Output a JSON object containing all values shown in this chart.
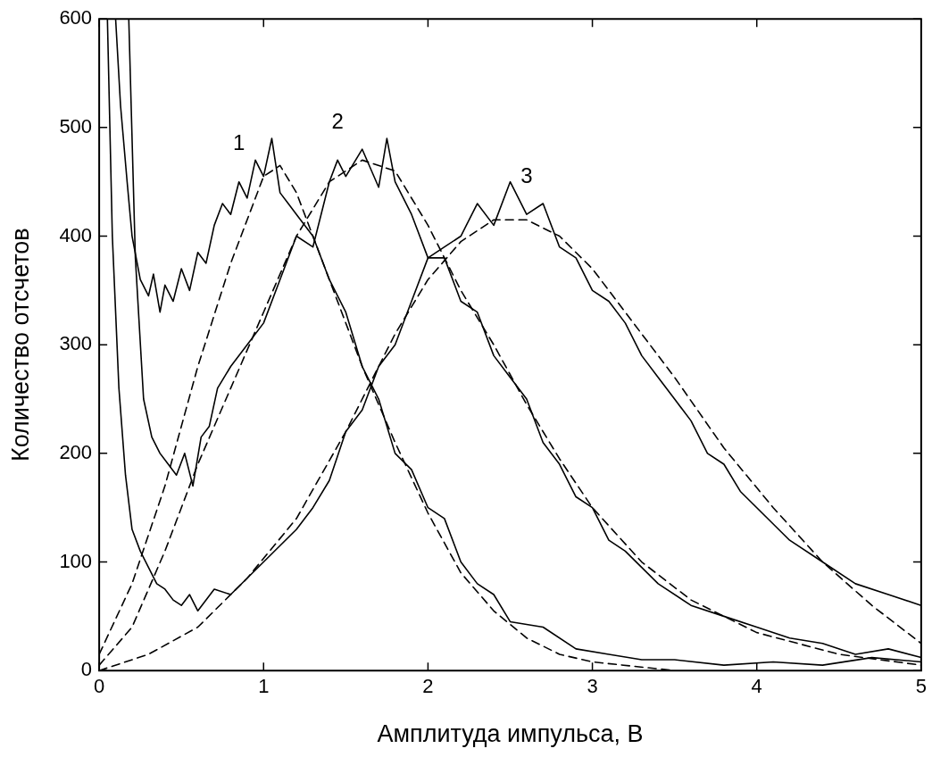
{
  "chart_data": {
    "type": "line",
    "xlabel": "Амплитуда импульса, В",
    "ylabel": "Количество отсчетов",
    "xlim": [
      0,
      5
    ],
    "ylim": [
      0,
      600
    ],
    "xticks": [
      0,
      1,
      2,
      3,
      4,
      5
    ],
    "yticks": [
      0,
      100,
      200,
      300,
      400,
      500,
      600
    ],
    "grid": false,
    "legend": false,
    "marker": "none",
    "annotations": [
      {
        "text": "1",
        "x": 0.85,
        "y": 450
      },
      {
        "text": "2",
        "x": 1.45,
        "y": 470
      },
      {
        "text": "3",
        "x": 2.6,
        "y": 420
      }
    ],
    "series": [
      {
        "line_style": "solid",
        "color": "#000000",
        "x": [
          0.1,
          0.13,
          0.17,
          0.2,
          0.25,
          0.3,
          0.33,
          0.37,
          0.4,
          0.45,
          0.5,
          0.55,
          0.6,
          0.65,
          0.7,
          0.75,
          0.8,
          0.85,
          0.9,
          0.95,
          1.0,
          1.05,
          1.1,
          1.15,
          1.2,
          1.3,
          1.4,
          1.5,
          1.6,
          1.7,
          1.8,
          1.9,
          2.0,
          2.1,
          2.2,
          2.3,
          2.4,
          2.5,
          2.7,
          2.9,
          3.1,
          3.3,
          3.5,
          3.8,
          4.1,
          4.4,
          4.7,
          5.0
        ],
        "values": [
          600,
          520,
          450,
          400,
          360,
          345,
          365,
          330,
          355,
          340,
          370,
          350,
          385,
          375,
          410,
          430,
          420,
          450,
          435,
          470,
          455,
          490,
          440,
          430,
          420,
          400,
          360,
          330,
          280,
          250,
          200,
          185,
          150,
          140,
          100,
          80,
          70,
          45,
          40,
          20,
          15,
          10,
          10,
          5,
          8,
          5,
          12,
          8
        ]
      },
      {
        "line_style": "dashed",
        "color": "#000000",
        "x": [
          0,
          0.2,
          0.4,
          0.6,
          0.8,
          1.0,
          1.1,
          1.2,
          1.4,
          1.6,
          1.8,
          2.0,
          2.2,
          2.4,
          2.6,
          2.8,
          3.0,
          3.5
        ],
        "values": [
          15,
          80,
          170,
          280,
          375,
          455,
          465,
          440,
          360,
          280,
          210,
          145,
          90,
          55,
          30,
          15,
          8,
          0
        ]
      },
      {
        "line_style": "solid",
        "color": "#000000",
        "x": [
          0.18,
          0.22,
          0.27,
          0.32,
          0.37,
          0.42,
          0.47,
          0.52,
          0.57,
          0.62,
          0.67,
          0.72,
          0.8,
          0.9,
          1.0,
          1.1,
          1.2,
          1.3,
          1.4,
          1.45,
          1.5,
          1.6,
          1.7,
          1.75,
          1.8,
          1.9,
          2.0,
          2.1,
          2.2,
          2.3,
          2.4,
          2.5,
          2.6,
          2.7,
          2.8,
          2.9,
          3.0,
          3.1,
          3.2,
          3.4,
          3.6,
          3.8,
          4.0,
          4.2,
          4.4,
          4.6,
          4.8,
          5.0
        ],
        "values": [
          600,
          380,
          250,
          215,
          200,
          190,
          180,
          200,
          170,
          215,
          225,
          260,
          280,
          300,
          320,
          360,
          400,
          390,
          450,
          470,
          455,
          480,
          445,
          490,
          450,
          420,
          380,
          380,
          340,
          330,
          290,
          270,
          250,
          210,
          190,
          160,
          150,
          120,
          110,
          80,
          60,
          50,
          40,
          30,
          25,
          15,
          20,
          12
        ]
      },
      {
        "line_style": "dashed",
        "color": "#000000",
        "x": [
          0,
          0.2,
          0.4,
          0.6,
          0.8,
          1.0,
          1.2,
          1.4,
          1.6,
          1.8,
          2.0,
          2.2,
          2.4,
          2.6,
          2.8,
          3.0,
          3.3,
          3.6,
          4.0,
          4.5,
          5.0
        ],
        "values": [
          5,
          40,
          110,
          190,
          260,
          330,
          400,
          450,
          470,
          460,
          410,
          350,
          300,
          245,
          195,
          150,
          100,
          65,
          35,
          15,
          5
        ]
      },
      {
        "line_style": "solid",
        "color": "#000000",
        "x": [
          0.05,
          0.08,
          0.12,
          0.16,
          0.2,
          0.25,
          0.3,
          0.35,
          0.4,
          0.45,
          0.5,
          0.55,
          0.6,
          0.7,
          0.8,
          0.9,
          1.0,
          1.1,
          1.2,
          1.3,
          1.4,
          1.5,
          1.6,
          1.7,
          1.8,
          1.9,
          2.0,
          2.1,
          2.2,
          2.3,
          2.4,
          2.5,
          2.6,
          2.7,
          2.8,
          2.9,
          3.0,
          3.1,
          3.2,
          3.3,
          3.4,
          3.5,
          3.6,
          3.7,
          3.8,
          3.9,
          4.0,
          4.2,
          4.4,
          4.6,
          4.8,
          5.0
        ],
        "values": [
          600,
          400,
          260,
          180,
          130,
          110,
          95,
          80,
          75,
          65,
          60,
          70,
          55,
          75,
          70,
          85,
          100,
          115,
          130,
          150,
          175,
          220,
          240,
          280,
          300,
          340,
          380,
          390,
          400,
          430,
          410,
          450,
          420,
          430,
          390,
          380,
          350,
          340,
          320,
          290,
          270,
          250,
          230,
          200,
          190,
          165,
          150,
          120,
          100,
          80,
          70,
          60
        ]
      },
      {
        "line_style": "dashed",
        "color": "#000000",
        "x": [
          0,
          0.3,
          0.6,
          0.9,
          1.2,
          1.5,
          1.8,
          2.0,
          2.2,
          2.4,
          2.6,
          2.8,
          3.0,
          3.2,
          3.5,
          3.8,
          4.1,
          4.4,
          4.7,
          5.0
        ],
        "values": [
          0,
          15,
          40,
          85,
          140,
          220,
          310,
          360,
          395,
          415,
          415,
          400,
          370,
          330,
          270,
          205,
          150,
          100,
          60,
          25
        ]
      }
    ]
  }
}
